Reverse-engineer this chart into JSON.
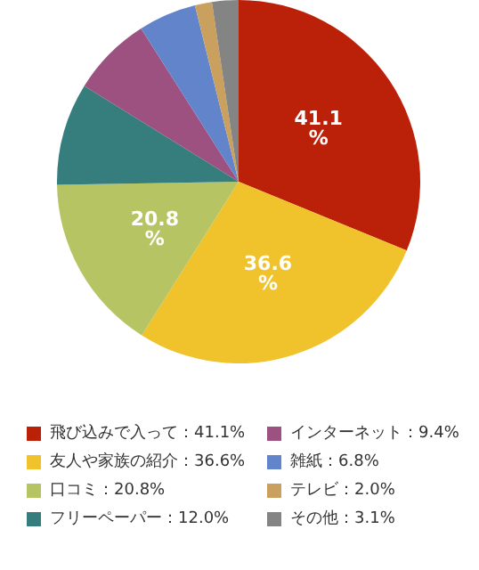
{
  "chart_data": {
    "type": "pie",
    "categories": [
      "飛び込みで入って：41.1%",
      "友人や家族の紹介：36.6%",
      "口コミ：20.8%",
      "フリーペーパー：12.0%",
      "インターネット：9.4%",
      "雑紙：6.8%",
      "テレビ：2.0%",
      "その他：3.1%"
    ],
    "values": [
      41.1,
      36.6,
      20.8,
      12.0,
      9.4,
      6.8,
      2.0,
      3.1
    ],
    "colors": [
      "#bb2008",
      "#f0c22c",
      "#b6c463",
      "#357e7d",
      "#9c5181",
      "#6184cb",
      "#c9a05e",
      "#848484"
    ],
    "value_labels": [
      "41.1%",
      "36.6%",
      "20.8%",
      null,
      null,
      null,
      null,
      null
    ],
    "legend": "bottom"
  }
}
